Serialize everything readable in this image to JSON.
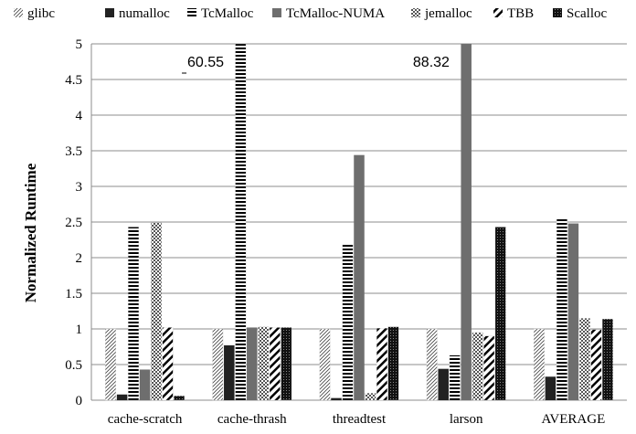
{
  "chart_data": {
    "type": "bar",
    "title": "",
    "xlabel": "",
    "ylabel": "Normalized Runtime",
    "ylim": [
      0,
      5
    ],
    "yticks": [
      "0",
      "0.5",
      "1",
      "1.5",
      "2",
      "2.5",
      "3",
      "3.5",
      "4",
      "4.5",
      "5"
    ],
    "grid": "horizontal",
    "legend_position": "top",
    "categories": [
      "cache-scratch",
      "cache-thrash",
      "threadtest",
      "larson",
      "AVERAGE"
    ],
    "series": [
      {
        "name": "glibc",
        "pattern": "diag-fine",
        "color": "#000000",
        "values": [
          1,
          1,
          1,
          1,
          1
        ]
      },
      {
        "name": "numalloc",
        "pattern": "solid",
        "color": "#222222",
        "values": [
          0.08,
          0.77,
          0.03,
          0.44,
          0.33
        ]
      },
      {
        "name": "TcMalloc",
        "pattern": "horizontal",
        "color": "#000000",
        "values": [
          2.43,
          5,
          2.18,
          0.63,
          2.54
        ]
      },
      {
        "name": "TcMalloc-NUMA",
        "pattern": "solid",
        "color": "#6e6e6e",
        "values": [
          0.43,
          1.02,
          3.44,
          5,
          2.48
        ]
      },
      {
        "name": "jemalloc",
        "pattern": "checker",
        "color": "#000000",
        "values": [
          2.49,
          1.03,
          0.1,
          0.95,
          1.15
        ]
      },
      {
        "name": "TBB",
        "pattern": "diag-wide",
        "color": "#000000",
        "values": [
          1.02,
          1.02,
          1.01,
          0.9,
          0.99
        ]
      },
      {
        "name": "Scalloc",
        "pattern": "dense",
        "color": "#222222",
        "values": [
          0.06,
          1.02,
          1.03,
          2.43,
          1.14
        ]
      }
    ],
    "annotations": [
      {
        "text": "60.55",
        "category": "cache-thrash",
        "series": "TcMalloc"
      },
      {
        "text": "88.32",
        "category": "larson",
        "series": "TcMalloc-NUMA"
      }
    ]
  }
}
